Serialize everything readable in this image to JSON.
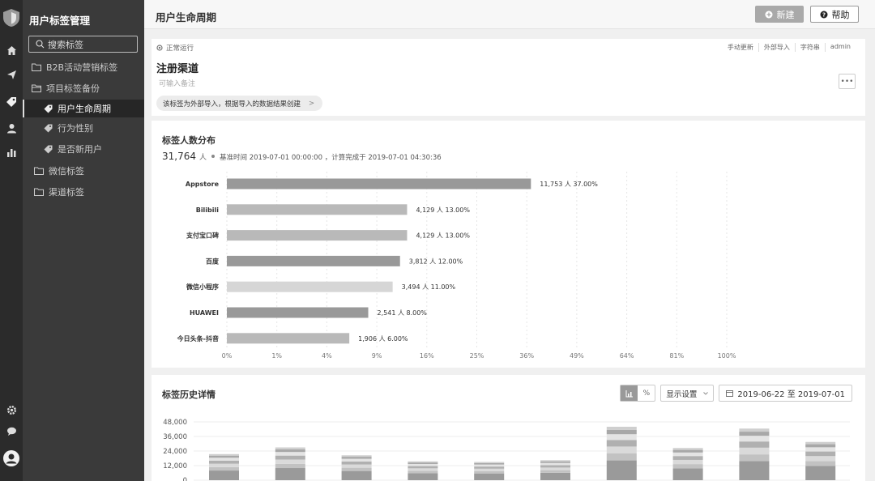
{
  "sidebar": {
    "title": "用户标签管理",
    "search_placeholder": "搜索标签",
    "items": [
      {
        "label": "B2B活动营销标签"
      },
      {
        "label": "项目标签备份"
      },
      {
        "label": "用户生命周期"
      },
      {
        "label": "行为性别"
      },
      {
        "label": "是否新用户"
      },
      {
        "label": "微信标签"
      },
      {
        "label": "渠道标签"
      }
    ]
  },
  "header": {
    "title": "用户生命周期",
    "new_label": "新建",
    "help_label": "帮助"
  },
  "tag": {
    "status": "正常运行",
    "links": [
      "手动更新",
      "外部导入",
      "字符串",
      "admin"
    ],
    "name": "注册渠道",
    "note_placeholder": "可输入备注",
    "info": "该标签为外部导入，根据导入的数据结果创建",
    "info_arrow": ">"
  },
  "distribution": {
    "title": "标签人数分布",
    "total": "31,764",
    "unit": "人",
    "meta": "基准时间 2019-07-01 00:00:00 ，计算完成于 2019-07-01 04:30:36"
  },
  "chart_data": [
    {
      "type": "bar",
      "orientation": "horizontal",
      "categories": [
        "Appstore",
        "Bilibili",
        "支付宝口碑",
        "百度",
        "微信小程序",
        "HUAWEI",
        "今日头条-抖音"
      ],
      "values": [
        11753,
        4129,
        4129,
        3812,
        3494,
        2541,
        1906
      ],
      "percent": [
        37.0,
        13.0,
        13.0,
        12.0,
        11.0,
        8.0,
        6.0
      ],
      "value_labels": [
        "11,753 人 37.00%",
        "4,129 人 13.00%",
        "4,129 人 13.00%",
        "3,812 人 12.00%",
        "3,494 人 11.00%",
        "2,541 人 8.00%",
        "1,906 人 6.00%"
      ],
      "x_ticks": [
        "0%",
        "1%",
        "4%",
        "9%",
        "16%",
        "25%",
        "36%",
        "49%",
        "64%",
        "81%",
        "100%"
      ],
      "x_scale": "sqrt",
      "xlim": [
        0,
        100
      ],
      "grid": true
    },
    {
      "type": "bar",
      "stacked": true,
      "y_ticks": [
        "48,000",
        "36,000",
        "24,000",
        "12,000",
        "0"
      ],
      "ylim": [
        0,
        48000
      ],
      "totals": [
        21500,
        27000,
        20500,
        15500,
        15000,
        16500,
        44000,
        26500,
        42500,
        31500
      ],
      "segment_fractions": [
        0.37,
        0.13,
        0.13,
        0.12,
        0.11,
        0.08,
        0.06
      ],
      "grid": true
    }
  ],
  "history": {
    "title": "标签历史详情",
    "view_chart_icon": "bar-chart-icon",
    "view_percent": "%",
    "display_settings": "显示设置",
    "date_range": "2019-06-22 至 2019-07-01"
  },
  "colors": {
    "rail": "#2b2b2b",
    "sidebar": "#3a3a3a",
    "bar_dark": "#999999",
    "bar_mid": "#b9b9b9",
    "bar_light": "#d6d6d6"
  }
}
